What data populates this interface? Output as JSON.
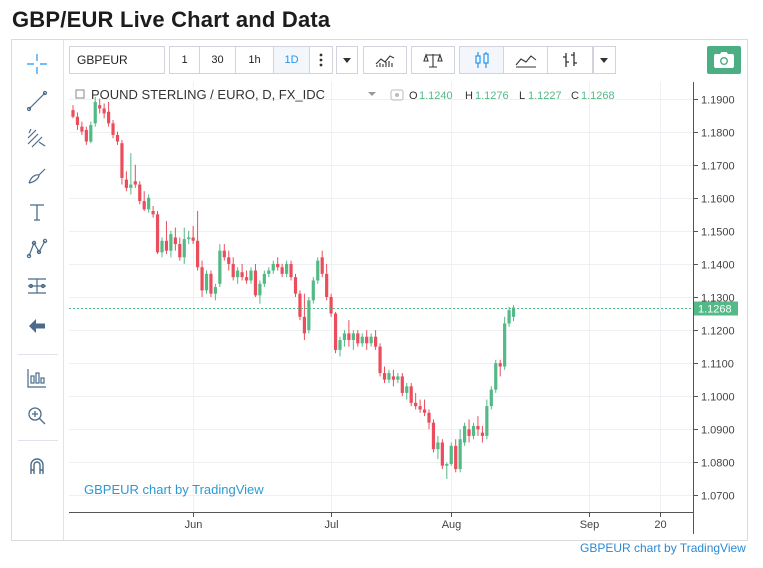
{
  "page_title": "GBP/EUR Live Chart and Data",
  "toolbar": {
    "symbol": "GBPEUR",
    "intervals": [
      "1",
      "30",
      "1h",
      "1D"
    ],
    "active_interval": "1D",
    "more_icon": "vertical-dots-icon",
    "dropdown_icon": "caret-down-icon",
    "indicators_icon": "indicators-icon",
    "compare_icon": "scales-icon",
    "candles_icon": "candlestick-icon",
    "area_icon": "area-chart-icon",
    "bars_icon": "bar-style-icon",
    "snapshot_icon": "camera-icon"
  },
  "legend": {
    "title": "POUND STERLING / EURO, D, FX_IDC",
    "o_label": "O",
    "o_value": "1.1240",
    "h_label": "H",
    "h_value": "1.1276",
    "l_label": "L",
    "l_value": "1.1227",
    "c_label": "C",
    "c_value": "1.1268"
  },
  "watermark": "GBPEUR chart by TradingView",
  "footer": "GBPEUR chart by TradingView",
  "colors": {
    "up": "#53b987",
    "down": "#eb4d5c",
    "accent": "#2196f3",
    "camera": "#4caf83",
    "last_price": "#53b987"
  },
  "chart_data": {
    "type": "candlestick",
    "title": "POUND STERLING / EURO, D, FX_IDC",
    "ylim": [
      1.065,
      1.195
    ],
    "y_ticks": [
      "1.1900",
      "1.1800",
      "1.1700",
      "1.1600",
      "1.1500",
      "1.1400",
      "1.1300",
      "1.1200",
      "1.1100",
      "1.1000",
      "1.0900",
      "1.0800",
      "1.0700"
    ],
    "x_ticks": [
      "Jun",
      "Jul",
      "Aug",
      "Sep",
      "20"
    ],
    "x_tick_index": [
      27,
      58,
      85,
      116,
      132
    ],
    "last_price": "1.1268",
    "last_value": 1.1268,
    "candles": [
      [
        1.1865,
        1.188,
        1.184,
        1.1845
      ],
      [
        1.1845,
        1.1858,
        1.1805,
        1.182
      ],
      [
        1.1815,
        1.183,
        1.179,
        1.18
      ],
      [
        1.1805,
        1.1815,
        1.176,
        1.177
      ],
      [
        1.177,
        1.183,
        1.1765,
        1.182
      ],
      [
        1.1825,
        1.1905,
        1.1815,
        1.189
      ],
      [
        1.188,
        1.19,
        1.1855,
        1.187
      ],
      [
        1.187,
        1.1885,
        1.184,
        1.1855
      ],
      [
        1.186,
        1.189,
        1.1815,
        1.1825
      ],
      [
        1.1825,
        1.1835,
        1.178,
        1.179
      ],
      [
        1.179,
        1.18,
        1.176,
        1.177
      ],
      [
        1.1765,
        1.1775,
        1.164,
        1.166
      ],
      [
        1.1655,
        1.168,
        1.162,
        1.163
      ],
      [
        1.163,
        1.1735,
        1.161,
        1.164
      ],
      [
        1.165,
        1.17,
        1.163,
        1.164
      ],
      [
        1.164,
        1.165,
        1.158,
        1.159
      ],
      [
        1.159,
        1.162,
        1.156,
        1.1565
      ],
      [
        1.1565,
        1.161,
        1.1555,
        1.16
      ],
      [
        1.156,
        1.1575,
        1.154,
        1.155
      ],
      [
        1.155,
        1.156,
        1.143,
        1.1435
      ],
      [
        1.1435,
        1.148,
        1.142,
        1.147
      ],
      [
        1.147,
        1.153,
        1.143,
        1.144
      ],
      [
        1.144,
        1.15,
        1.142,
        1.149
      ],
      [
        1.148,
        1.151,
        1.144,
        1.146
      ],
      [
        1.146,
        1.148,
        1.141,
        1.142
      ],
      [
        1.142,
        1.151,
        1.14,
        1.1475
      ],
      [
        1.1475,
        1.15,
        1.146,
        1.148
      ],
      [
        1.148,
        1.1515,
        1.146,
        1.147
      ],
      [
        1.147,
        1.156,
        1.138,
        1.139
      ],
      [
        1.139,
        1.141,
        1.13,
        1.132
      ],
      [
        1.132,
        1.138,
        1.131,
        1.137
      ],
      [
        1.137,
        1.138,
        1.13,
        1.131
      ],
      [
        1.131,
        1.134,
        1.129,
        1.133
      ],
      [
        1.134,
        1.146,
        1.133,
        1.144
      ],
      [
        1.144,
        1.146,
        1.141,
        1.142
      ],
      [
        1.142,
        1.144,
        1.138,
        1.14
      ],
      [
        1.14,
        1.142,
        1.135,
        1.136
      ],
      [
        1.136,
        1.139,
        1.134,
        1.138
      ],
      [
        1.1375,
        1.14,
        1.135,
        1.136
      ],
      [
        1.136,
        1.138,
        1.134,
        1.135
      ],
      [
        1.135,
        1.139,
        1.134,
        1.138
      ],
      [
        1.138,
        1.14,
        1.13,
        1.1305
      ],
      [
        1.1305,
        1.135,
        1.128,
        1.134
      ],
      [
        1.134,
        1.138,
        1.133,
        1.137
      ],
      [
        1.137,
        1.139,
        1.136,
        1.138
      ],
      [
        1.138,
        1.141,
        1.137,
        1.14
      ],
      [
        1.14,
        1.142,
        1.138,
        1.139
      ],
      [
        1.139,
        1.14,
        1.136,
        1.137
      ],
      [
        1.137,
        1.141,
        1.136,
        1.14
      ],
      [
        1.14,
        1.141,
        1.135,
        1.136
      ],
      [
        1.136,
        1.137,
        1.13,
        1.131
      ],
      [
        1.131,
        1.132,
        1.123,
        1.124
      ],
      [
        1.124,
        1.131,
        1.117,
        1.119
      ],
      [
        1.12,
        1.13,
        1.119,
        1.129
      ],
      [
        1.129,
        1.136,
        1.128,
        1.135
      ],
      [
        1.135,
        1.142,
        1.134,
        1.141
      ],
      [
        1.142,
        1.144,
        1.136,
        1.137
      ],
      [
        1.137,
        1.14,
        1.129,
        1.13
      ],
      [
        1.13,
        1.131,
        1.124,
        1.125
      ],
      [
        1.125,
        1.1255,
        1.113,
        1.114
      ],
      [
        1.114,
        1.118,
        1.112,
        1.117
      ],
      [
        1.117,
        1.12,
        1.115,
        1.119
      ],
      [
        1.119,
        1.123,
        1.115,
        1.117
      ],
      [
        1.117,
        1.12,
        1.114,
        1.119
      ],
      [
        1.119,
        1.12,
        1.115,
        1.116
      ],
      [
        1.116,
        1.119,
        1.115,
        1.118
      ],
      [
        1.118,
        1.12,
        1.114,
        1.116
      ],
      [
        1.116,
        1.119,
        1.115,
        1.118
      ],
      [
        1.118,
        1.12,
        1.114,
        1.115
      ],
      [
        1.115,
        1.116,
        1.106,
        1.107
      ],
      [
        1.107,
        1.109,
        1.104,
        1.105
      ],
      [
        1.105,
        1.108,
        1.104,
        1.107
      ],
      [
        1.106,
        1.108,
        1.103,
        1.105
      ],
      [
        1.105,
        1.107,
        1.104,
        1.106
      ],
      [
        1.106,
        1.107,
        1.1,
        1.101
      ],
      [
        1.101,
        1.104,
        1.099,
        1.103
      ],
      [
        1.103,
        1.104,
        1.097,
        1.098
      ],
      [
        1.098,
        1.101,
        1.096,
        1.097
      ],
      [
        1.097,
        1.099,
        1.095,
        1.096
      ],
      [
        1.096,
        1.099,
        1.094,
        1.095
      ],
      [
        1.095,
        1.096,
        1.09,
        1.092
      ],
      [
        1.092,
        1.093,
        1.083,
        1.084
      ],
      [
        1.084,
        1.088,
        1.081,
        1.086
      ],
      [
        1.086,
        1.087,
        1.078,
        1.079
      ],
      [
        1.079,
        1.08,
        1.075,
        1.0795
      ],
      [
        1.0795,
        1.086,
        1.079,
        1.085
      ],
      [
        1.085,
        1.087,
        1.077,
        1.078
      ],
      [
        1.078,
        1.09,
        1.077,
        1.087
      ],
      [
        1.086,
        1.092,
        1.085,
        1.091
      ],
      [
        1.09,
        1.093,
        1.086,
        1.088
      ],
      [
        1.088,
        1.092,
        1.087,
        1.091
      ],
      [
        1.091,
        1.094,
        1.088,
        1.09
      ],
      [
        1.089,
        1.091,
        1.086,
        1.088
      ],
      [
        1.088,
        1.099,
        1.087,
        1.097
      ],
      [
        1.097,
        1.103,
        1.096,
        1.102
      ],
      [
        1.102,
        1.111,
        1.101,
        1.11
      ],
      [
        1.11,
        1.111,
        1.106,
        1.109
      ],
      [
        1.109,
        1.124,
        1.108,
        1.122
      ],
      [
        1.122,
        1.127,
        1.121,
        1.126
      ],
      [
        1.124,
        1.1276,
        1.1227,
        1.1268
      ]
    ]
  }
}
